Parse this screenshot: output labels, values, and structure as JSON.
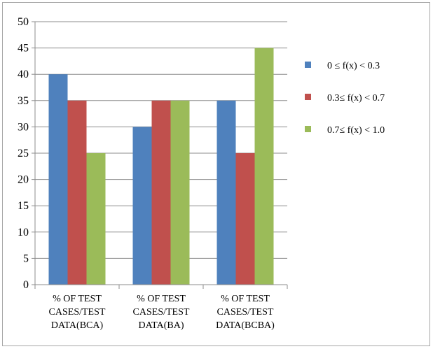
{
  "chart_data": {
    "type": "bar",
    "categories": [
      [
        "% OF TEST",
        "CASES/TEST",
        "DATA(BCA)"
      ],
      [
        "% OF TEST",
        "CASES/TEST",
        "DATA(BA)"
      ],
      [
        "% OF TEST",
        "CASES/TEST",
        "DATA(BCBA)"
      ]
    ],
    "series": [
      {
        "name": "0  ≤  f(x) < 0.3",
        "values": [
          40,
          30,
          35
        ],
        "color": "#4f81bd"
      },
      {
        "name": "0.3≤  f(x) < 0.7",
        "values": [
          35,
          35,
          25
        ],
        "color": "#c0504d"
      },
      {
        "name": "0.7≤  f(x) < 1.0",
        "values": [
          25,
          35,
          45
        ],
        "color": "#9bbb59"
      }
    ],
    "ylim": [
      0,
      50
    ],
    "yticks": [
      "0",
      "5",
      "10",
      "15",
      "20",
      "25",
      "30",
      "35",
      "40",
      "45",
      "50"
    ],
    "grid": true,
    "legend": "right",
    "title": "",
    "xlabel": "",
    "ylabel": ""
  }
}
